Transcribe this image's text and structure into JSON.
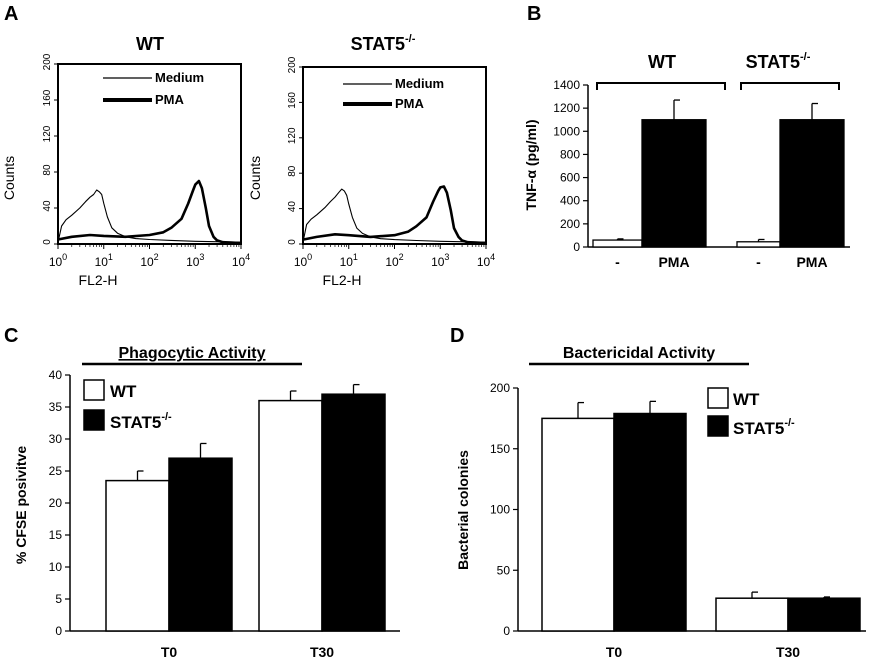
{
  "panels": {
    "A": {
      "letter": "A",
      "xlabel": "FL2-H",
      "ylabel": "Counts",
      "legend": [
        "Medium",
        "PMA"
      ],
      "yticks": [
        "0",
        "40",
        "80",
        "120",
        "160",
        "200"
      ],
      "subplots": [
        {
          "title_main": "WT",
          "title_sup": ""
        },
        {
          "title_main": "STAT5",
          "title_sup": "-/-"
        }
      ]
    },
    "B": {
      "letter": "B",
      "ylabel": "TNF-α (pg/ml)",
      "yticks": [
        "0",
        "200",
        "400",
        "600",
        "800",
        "1000",
        "1200",
        "1400"
      ],
      "group_labels": [
        {
          "main": "WT",
          "sup": ""
        },
        {
          "main": "STAT5",
          "sup": "-/-"
        }
      ],
      "xticks": [
        "-",
        "PMA",
        "-",
        "PMA"
      ]
    },
    "C": {
      "letter": "C",
      "title": "Phagocytic Activity",
      "ylabel": "% CFSE posivitve",
      "yticks": [
        "0",
        "5",
        "10",
        "15",
        "20",
        "25",
        "30",
        "35",
        "40"
      ],
      "legend": [
        {
          "main": "WT",
          "sup": ""
        },
        {
          "main": "STAT5",
          "sup": "-/-"
        }
      ]
    },
    "D": {
      "letter": "D",
      "title": "Bactericidal Activity",
      "ylabel": "Bacterial colonies",
      "yticks": [
        "0",
        "50",
        "100",
        "150",
        "200"
      ],
      "legend": [
        {
          "main": "WT",
          "sup": ""
        },
        {
          "main": "STAT5",
          "sup": "-/-"
        }
      ]
    }
  },
  "chart_data": [
    {
      "type": "line",
      "panel": "A",
      "title": "WT",
      "xlabel": "FL2-H",
      "ylabel": "Counts",
      "x_scale": "log",
      "xlim": [
        1,
        10000
      ],
      "ylim": [
        0,
        200
      ],
      "series": [
        {
          "name": "Medium",
          "x": [
            1,
            1.2,
            1.5,
            2,
            3,
            4,
            5,
            6,
            7,
            8,
            9,
            10,
            12,
            15,
            20,
            30,
            50,
            100,
            300,
            1000,
            10000
          ],
          "y": [
            2,
            20,
            27,
            32,
            40,
            47,
            52,
            55,
            60,
            58,
            55,
            45,
            30,
            18,
            12,
            8,
            6,
            5,
            4,
            3,
            2
          ]
        },
        {
          "name": "PMA",
          "x": [
            1,
            2,
            5,
            10,
            30,
            100,
            200,
            300,
            500,
            700,
            900,
            1000,
            1200,
            1400,
            1700,
            2000,
            2500,
            3000,
            4000,
            10000
          ],
          "y": [
            5,
            8,
            10,
            9,
            8,
            10,
            13,
            18,
            28,
            45,
            60,
            66,
            70,
            62,
            40,
            20,
            8,
            4,
            2,
            1
          ]
        }
      ]
    },
    {
      "type": "line",
      "panel": "A",
      "title": "STAT5-/-",
      "xlabel": "FL2-H",
      "ylabel": "Counts",
      "x_scale": "log",
      "xlim": [
        1,
        10000
      ],
      "ylim": [
        0,
        200
      ],
      "series": [
        {
          "name": "Medium",
          "x": [
            1,
            1.2,
            1.5,
            2,
            3,
            4,
            5,
            6,
            7,
            8,
            9,
            10,
            12,
            15,
            20,
            30,
            50,
            100,
            300,
            1000,
            10000
          ],
          "y": [
            2,
            22,
            28,
            33,
            41,
            48,
            53,
            58,
            62,
            60,
            55,
            45,
            30,
            18,
            12,
            8,
            6,
            5,
            4,
            3,
            2
          ]
        },
        {
          "name": "PMA",
          "x": [
            1,
            2,
            5,
            10,
            30,
            100,
            200,
            300,
            500,
            700,
            900,
            1000,
            1200,
            1400,
            1700,
            2000,
            2500,
            3000,
            4000,
            10000
          ],
          "y": [
            5,
            8,
            11,
            10,
            8,
            10,
            14,
            20,
            30,
            48,
            60,
            64,
            65,
            58,
            38,
            18,
            8,
            4,
            2,
            1
          ]
        }
      ]
    },
    {
      "type": "bar",
      "panel": "B",
      "ylabel": "TNF-α (pg/ml)",
      "ylim": [
        0,
        1400
      ],
      "groups": [
        "WT",
        "STAT5-/-"
      ],
      "categories": [
        "-",
        "PMA",
        "-",
        "PMA"
      ],
      "values": [
        60,
        1100,
        45,
        1100
      ],
      "errors": [
        10,
        170,
        20,
        140
      ],
      "fills": [
        "#ffffff",
        "#000000",
        "#ffffff",
        "#000000"
      ]
    },
    {
      "type": "bar",
      "panel": "C",
      "title": "Phagocytic Activity",
      "ylabel": "% CFSE posivitve",
      "ylim": [
        0,
        40
      ],
      "categories": [
        "T0",
        "T30"
      ],
      "series": [
        {
          "name": "WT",
          "values": [
            23.5,
            36
          ],
          "errors": [
            1.5,
            1.5
          ],
          "fill": "#ffffff"
        },
        {
          "name": "STAT5-/-",
          "values": [
            27,
            37
          ],
          "errors": [
            2.3,
            1.5
          ],
          "fill": "#000000"
        }
      ]
    },
    {
      "type": "bar",
      "panel": "D",
      "title": "Bactericidal Activity",
      "ylabel": "Bacterial colonies",
      "ylim": [
        0,
        200
      ],
      "categories": [
        "T0",
        "T30"
      ],
      "series": [
        {
          "name": "WT",
          "values": [
            175,
            27
          ],
          "errors": [
            13,
            5
          ],
          "fill": "#ffffff"
        },
        {
          "name": "STAT5-/-",
          "values": [
            179,
            27
          ],
          "errors": [
            10,
            1
          ],
          "fill": "#000000"
        }
      ]
    }
  ]
}
